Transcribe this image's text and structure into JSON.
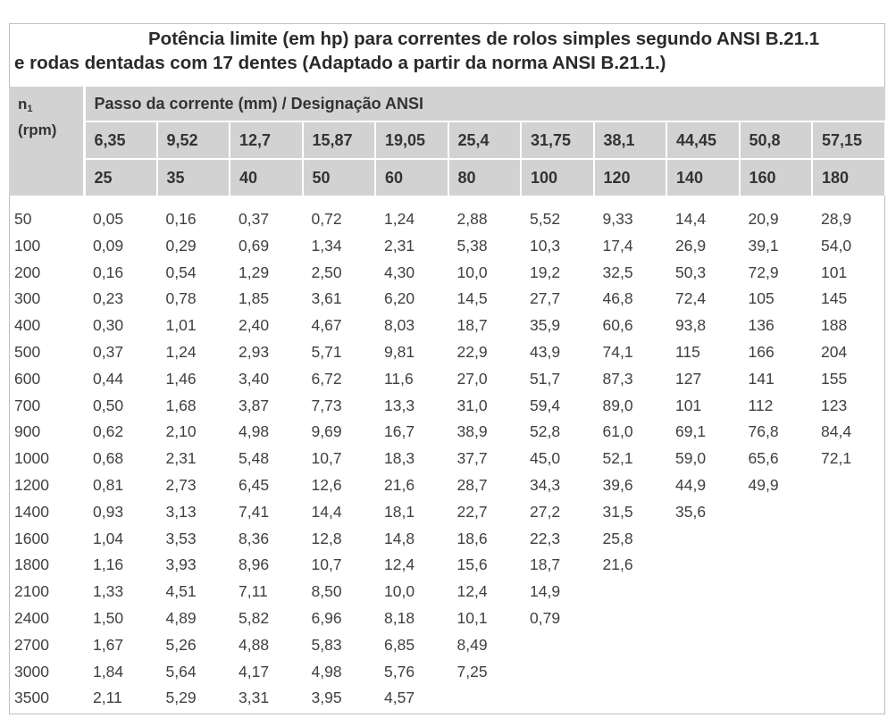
{
  "title": {
    "line1": "Potência limite (em hp) para correntes de rolos simples segundo ANSI B.21.1",
    "line2": "e rodas dentadas com 17 dentes (Adaptado a partir da norma ANSI B.21.1.)"
  },
  "table": {
    "corner": {
      "symbol": "n",
      "subscript": "1",
      "unit": "(rpm)"
    },
    "group_header": "Passo da corrente (mm) / Designação ANSI",
    "pitches_mm": [
      "6,35",
      "9,52",
      "12,7",
      "15,87",
      "19,05",
      "25,4",
      "31,75",
      "38,1",
      "44,45",
      "50,8",
      "57,15"
    ],
    "ansi_numbers": [
      "25",
      "35",
      "40",
      "50",
      "60",
      "80",
      "100",
      "120",
      "140",
      "160",
      "180"
    ],
    "rows": [
      {
        "rpm": "50",
        "values": [
          "0,05",
          "0,16",
          "0,37",
          "0,72",
          "1,24",
          "2,88",
          "5,52",
          "9,33",
          "14,4",
          "20,9",
          "28,9"
        ]
      },
      {
        "rpm": "100",
        "values": [
          "0,09",
          "0,29",
          "0,69",
          "1,34",
          "2,31",
          "5,38",
          "10,3",
          "17,4",
          "26,9",
          "39,1",
          "54,0"
        ]
      },
      {
        "rpm": "200",
        "values": [
          "0,16",
          "0,54",
          "1,29",
          "2,50",
          "4,30",
          "10,0",
          "19,2",
          "32,5",
          "50,3",
          "72,9",
          "101"
        ]
      },
      {
        "rpm": "300",
        "values": [
          "0,23",
          "0,78",
          "1,85",
          "3,61",
          "6,20",
          "14,5",
          "27,7",
          "46,8",
          "72,4",
          "105",
          "145"
        ]
      },
      {
        "rpm": "400",
        "values": [
          "0,30",
          "1,01",
          "2,40",
          "4,67",
          "8,03",
          "18,7",
          "35,9",
          "60,6",
          "93,8",
          "136",
          "188"
        ]
      },
      {
        "rpm": "500",
        "values": [
          "0,37",
          "1,24",
          "2,93",
          "5,71",
          "9,81",
          "22,9",
          "43,9",
          "74,1",
          "115",
          "166",
          "204"
        ]
      },
      {
        "rpm": "600",
        "values": [
          "0,44",
          "1,46",
          "3,40",
          "6,72",
          "11,6",
          "27,0",
          "51,7",
          "87,3",
          "127",
          "141",
          "155"
        ]
      },
      {
        "rpm": "700",
        "values": [
          "0,50",
          "1,68",
          "3,87",
          "7,73",
          "13,3",
          "31,0",
          "59,4",
          "89,0",
          "101",
          "112",
          "123"
        ]
      },
      {
        "rpm": "900",
        "values": [
          "0,62",
          "2,10",
          "4,98",
          "9,69",
          "16,7",
          "38,9",
          "52,8",
          "61,0",
          "69,1",
          "76,8",
          "84,4"
        ]
      },
      {
        "rpm": "1000",
        "values": [
          "0,68",
          "2,31",
          "5,48",
          "10,7",
          "18,3",
          "37,7",
          "45,0",
          "52,1",
          "59,0",
          "65,6",
          "72,1"
        ]
      },
      {
        "rpm": "1200",
        "values": [
          "0,81",
          "2,73",
          "6,45",
          "12,6",
          "21,6",
          "28,7",
          "34,3",
          "39,6",
          "44,9",
          "49,9",
          ""
        ]
      },
      {
        "rpm": "1400",
        "values": [
          "0,93",
          "3,13",
          "7,41",
          "14,4",
          "18,1",
          "22,7",
          "27,2",
          "31,5",
          "35,6",
          "",
          ""
        ]
      },
      {
        "rpm": "1600",
        "values": [
          "1,04",
          "3,53",
          "8,36",
          "12,8",
          "14,8",
          "18,6",
          "22,3",
          "25,8",
          "",
          "",
          ""
        ]
      },
      {
        "rpm": "1800",
        "values": [
          "1,16",
          "3,93",
          "8,96",
          "10,7",
          "12,4",
          "15,6",
          "18,7",
          "21,6",
          "",
          "",
          ""
        ]
      },
      {
        "rpm": "2100",
        "values": [
          "1,33",
          "4,51",
          "7,11",
          "8,50",
          "10,0",
          "12,4",
          "14,9",
          "",
          "",
          "",
          ""
        ]
      },
      {
        "rpm": "2400",
        "values": [
          "1,50",
          "4,89",
          "5,82",
          "6,96",
          "8,18",
          "10,1",
          "0,79",
          "",
          "",
          "",
          ""
        ]
      },
      {
        "rpm": "2700",
        "values": [
          "1,67",
          "5,26",
          "4,88",
          "5,83",
          "6,85",
          "8,49",
          "",
          "",
          "",
          "",
          ""
        ]
      },
      {
        "rpm": "3000",
        "values": [
          "1,84",
          "5,64",
          "4,17",
          "4,98",
          "5,76",
          "7,25",
          "",
          "",
          "",
          "",
          ""
        ]
      },
      {
        "rpm": "3500",
        "values": [
          "2,11",
          "5,29",
          "3,31",
          "3,95",
          "4,57",
          "",
          "",
          "",
          "",
          "",
          ""
        ]
      }
    ]
  }
}
